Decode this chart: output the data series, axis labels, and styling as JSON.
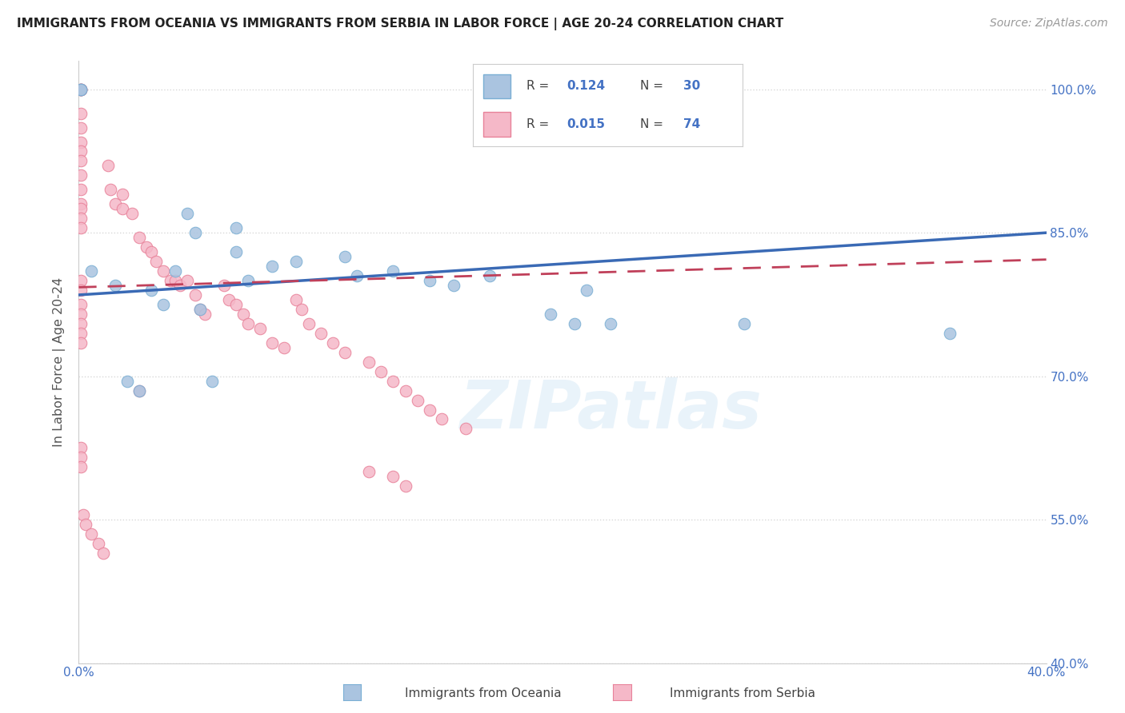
{
  "title": "IMMIGRANTS FROM OCEANIA VS IMMIGRANTS FROM SERBIA IN LABOR FORCE | AGE 20-24 CORRELATION CHART",
  "source": "Source: ZipAtlas.com",
  "ylabel": "In Labor Force | Age 20-24",
  "xlim": [
    0.0,
    0.4
  ],
  "ylim": [
    0.4,
    1.03
  ],
  "xticks": [
    0.0,
    0.05,
    0.1,
    0.15,
    0.2,
    0.25,
    0.3,
    0.35,
    0.4
  ],
  "xtick_labels": [
    "0.0%",
    "",
    "",
    "",
    "",
    "",
    "",
    "",
    "40.0%"
  ],
  "ytick_right_values": [
    0.4,
    0.55,
    0.7,
    0.85,
    1.0
  ],
  "ytick_right_labels": [
    "40.0%",
    "55.0%",
    "70.0%",
    "85.0%",
    "100.0%"
  ],
  "grid_color": "#d8d8d8",
  "background_color": "#ffffff",
  "watermark": "ZIPatlas",
  "legend_color1": "#aac4e0",
  "legend_color2": "#f5b8c8",
  "series1_color": "#aac4e0",
  "series2_color": "#f5b8c8",
  "series1_edgecolor": "#7aafd4",
  "series2_edgecolor": "#e8829a",
  "trendline1_color": "#3a6ab5",
  "trendline2_color": "#c0405a",
  "oceania_x": [
    0.001,
    0.001,
    0.045,
    0.048,
    0.065,
    0.065,
    0.08,
    0.09,
    0.11,
    0.115,
    0.13,
    0.145,
    0.155,
    0.17,
    0.195,
    0.205,
    0.21,
    0.22,
    0.275,
    0.005,
    0.015,
    0.02,
    0.025,
    0.03,
    0.035,
    0.04,
    0.05,
    0.055,
    0.07,
    0.36
  ],
  "oceania_y": [
    1.0,
    1.0,
    0.87,
    0.85,
    0.855,
    0.83,
    0.815,
    0.82,
    0.825,
    0.805,
    0.81,
    0.8,
    0.795,
    0.805,
    0.765,
    0.755,
    0.79,
    0.755,
    0.755,
    0.81,
    0.795,
    0.695,
    0.685,
    0.79,
    0.775,
    0.81,
    0.77,
    0.695,
    0.8,
    0.745
  ],
  "serbia_x": [
    0.001,
    0.001,
    0.001,
    0.001,
    0.001,
    0.001,
    0.001,
    0.001,
    0.001,
    0.001,
    0.001,
    0.001,
    0.001,
    0.001,
    0.001,
    0.012,
    0.013,
    0.015,
    0.018,
    0.018,
    0.022,
    0.025,
    0.028,
    0.03,
    0.032,
    0.035,
    0.038,
    0.04,
    0.042,
    0.045,
    0.048,
    0.05,
    0.052,
    0.06,
    0.062,
    0.065,
    0.068,
    0.07,
    0.075,
    0.08,
    0.085,
    0.09,
    0.092,
    0.095,
    0.1,
    0.105,
    0.11,
    0.12,
    0.125,
    0.13,
    0.135,
    0.14,
    0.145,
    0.15,
    0.16,
    0.001,
    0.001,
    0.001,
    0.001,
    0.001,
    0.001,
    0.001,
    0.001,
    0.001,
    0.001,
    0.025,
    0.12,
    0.13,
    0.135,
    0.002,
    0.003,
    0.005,
    0.008,
    0.01
  ],
  "serbia_y": [
    1.0,
    1.0,
    1.0,
    1.0,
    0.975,
    0.96,
    0.945,
    0.935,
    0.925,
    0.91,
    0.895,
    0.88,
    0.875,
    0.865,
    0.855,
    0.92,
    0.895,
    0.88,
    0.89,
    0.875,
    0.87,
    0.845,
    0.835,
    0.83,
    0.82,
    0.81,
    0.8,
    0.8,
    0.795,
    0.8,
    0.785,
    0.77,
    0.765,
    0.795,
    0.78,
    0.775,
    0.765,
    0.755,
    0.75,
    0.735,
    0.73,
    0.78,
    0.77,
    0.755,
    0.745,
    0.735,
    0.725,
    0.715,
    0.705,
    0.695,
    0.685,
    0.675,
    0.665,
    0.655,
    0.645,
    0.8,
    0.79,
    0.775,
    0.765,
    0.755,
    0.745,
    0.735,
    0.625,
    0.615,
    0.605,
    0.685,
    0.6,
    0.595,
    0.585,
    0.555,
    0.545,
    0.535,
    0.525,
    0.515
  ]
}
